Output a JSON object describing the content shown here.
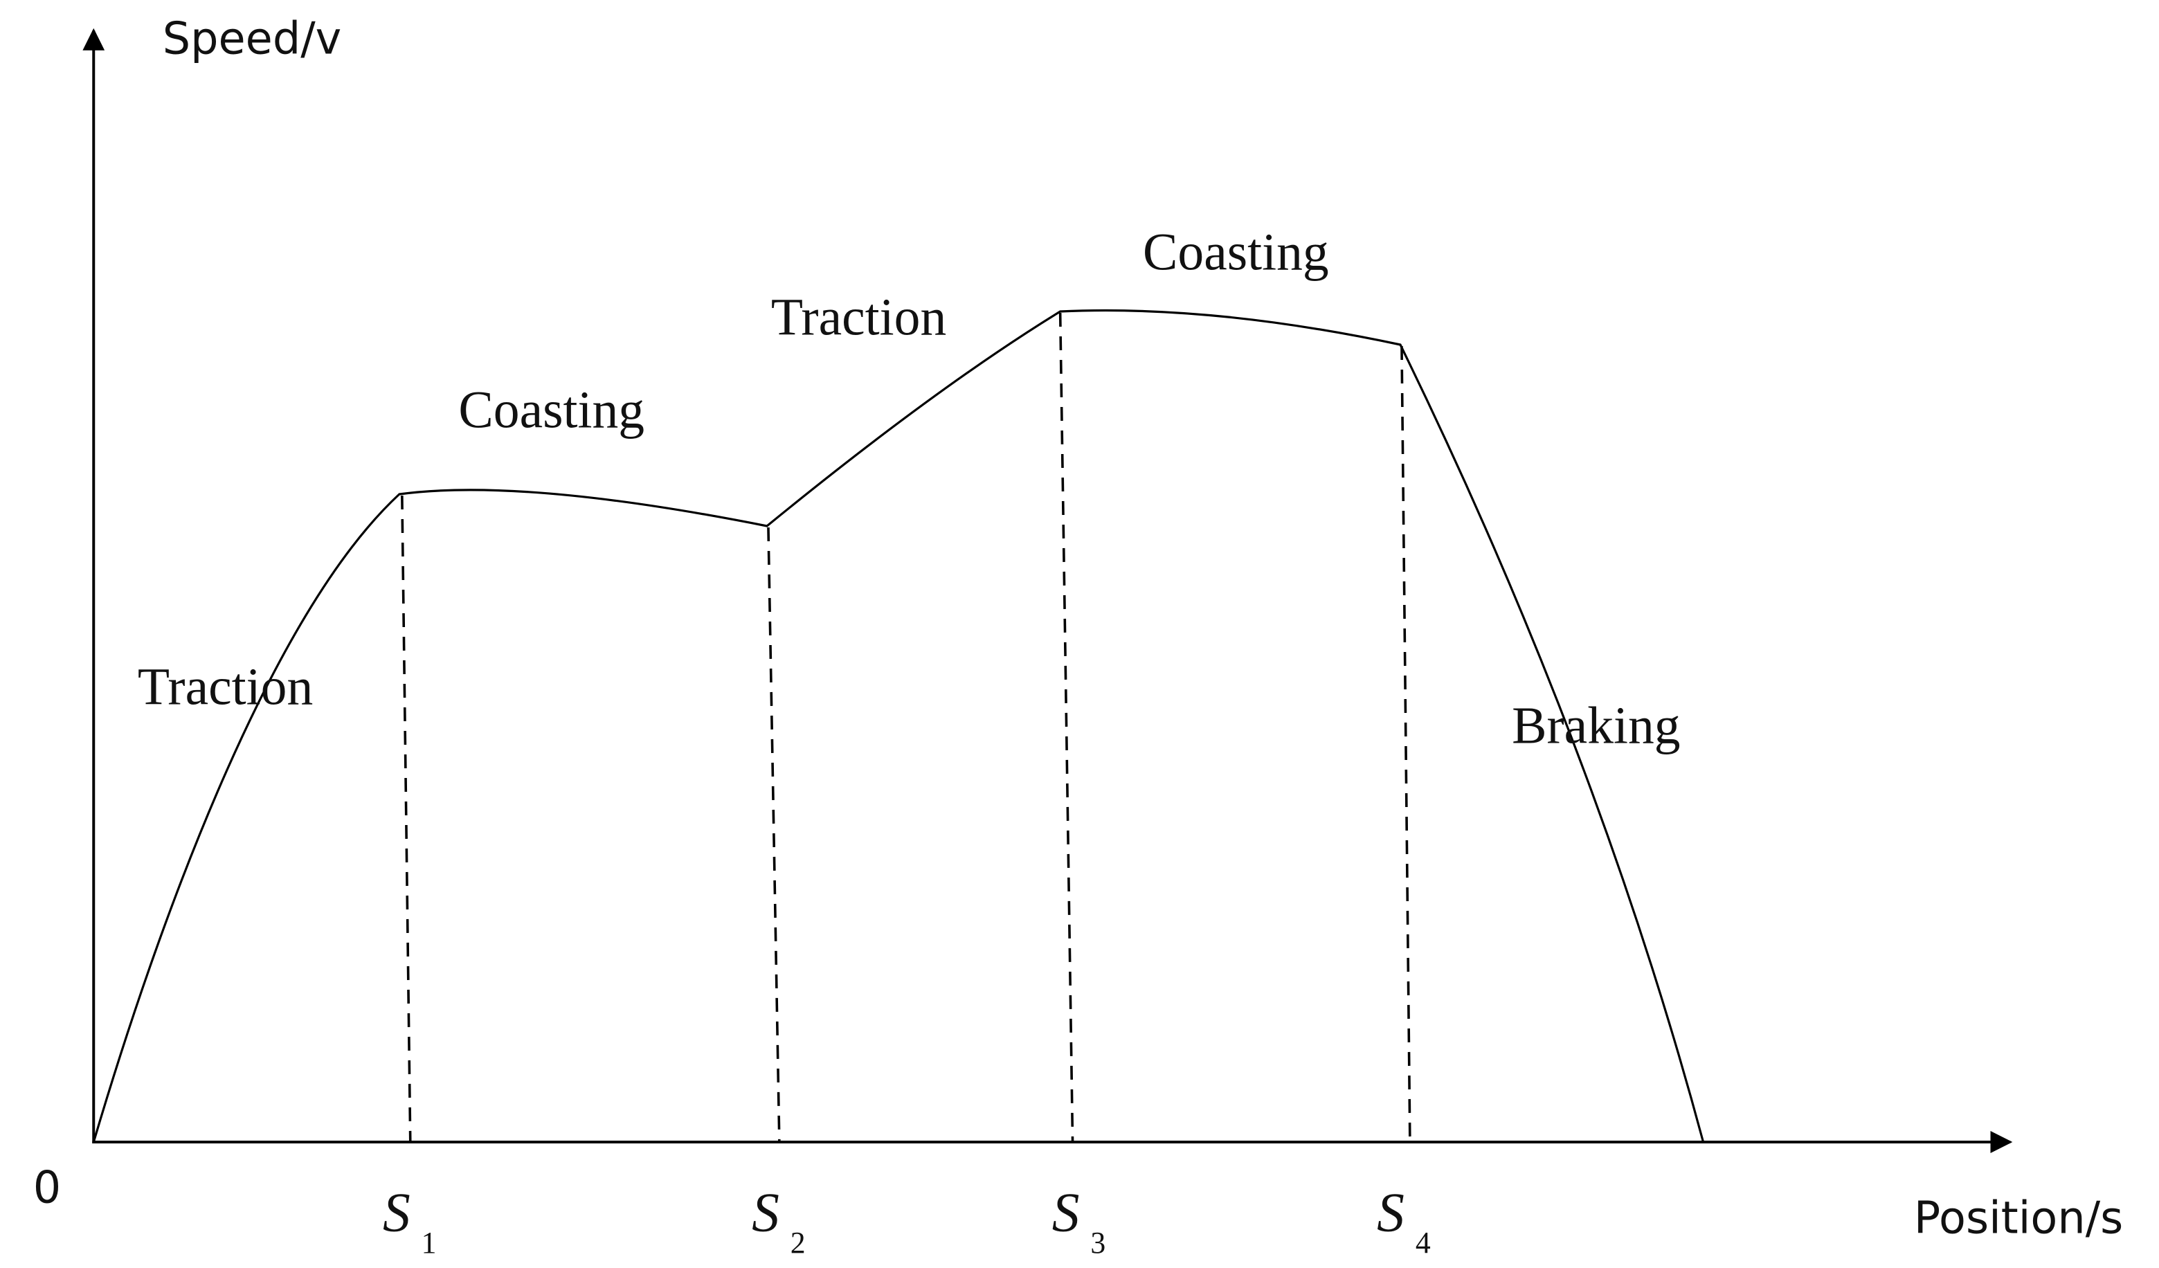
{
  "axes": {
    "y_label": "Speed/v",
    "x_label": "Position/s",
    "origin": "0"
  },
  "positions": [
    {
      "main": "S",
      "sub": "1"
    },
    {
      "main": "S",
      "sub": "2"
    },
    {
      "main": "S",
      "sub": "3"
    },
    {
      "main": "S",
      "sub": "4"
    }
  ],
  "phases": [
    "Traction",
    "Coasting",
    "Traction",
    "Coasting",
    "Braking"
  ]
}
